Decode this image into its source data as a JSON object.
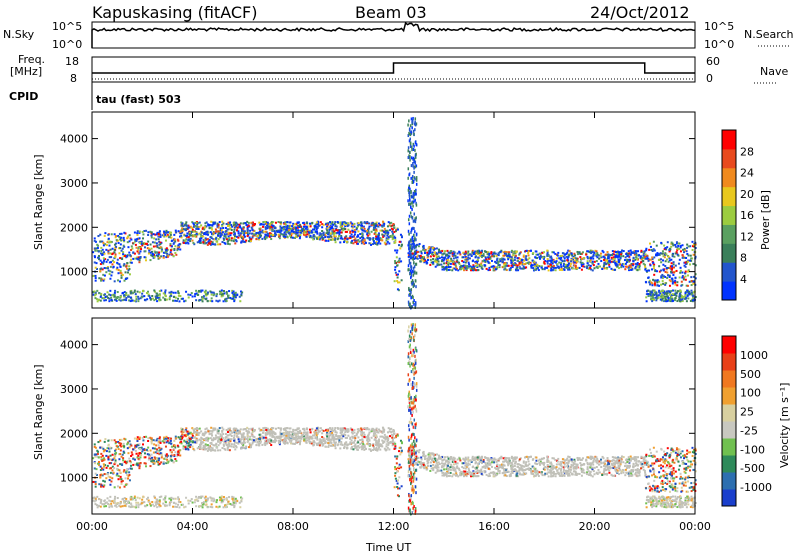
{
  "header": {
    "station": "Kapuskasing (fitACF)",
    "beam": "Beam 03",
    "date": "24/Oct/2012"
  },
  "panel_labels": {
    "nsky": "N.Sky",
    "nsearch": "N.Search",
    "freq_line1": "Freq.",
    "freq_line2": "[MHz]",
    "nave": "Nave",
    "cpid": "CPID",
    "cpid_value": "tau (fast) 503"
  },
  "noise_ticks_left": [
    "10^5",
    "10^0"
  ],
  "noise_ticks_right": [
    "10^5",
    "10^0"
  ],
  "freq_ticks_left": [
    "18",
    "8"
  ],
  "freq_ticks_right": [
    "60",
    "0"
  ],
  "colors": {
    "power_scale": [
      "#0033ff",
      "#2255cc",
      "#3a7f5a",
      "#5aa060",
      "#9ccc40",
      "#e8c81e",
      "#f08a1e",
      "#e84a1e",
      "#ff0000"
    ],
    "velocity_scale": [
      "#1a3fcc",
      "#2d6fb0",
      "#2e8a5a",
      "#70c050",
      "#c8c8c0",
      "#d8d0a0",
      "#f0a030",
      "#f07820",
      "#e84018",
      "#ff0000"
    ],
    "ground_scatter": "#c0c0b8"
  },
  "chart_data": [
    {
      "type": "heatmap",
      "name": "power",
      "xlabel": "",
      "ylabel": "Slant Range [km]",
      "x_ticks": [
        "00:00",
        "04:00",
        "08:00",
        "12:00",
        "16:00",
        "20:00",
        "00:00"
      ],
      "y_ticks": [
        "1000",
        "2000",
        "3000",
        "4000"
      ],
      "xlim_hours": [
        0,
        24
      ],
      "ylim_km": [
        180,
        4600
      ],
      "colorbar": {
        "label": "Power [dB]",
        "ticks": [
          "4",
          "8",
          "12",
          "16",
          "20",
          "24",
          "28"
        ]
      },
      "description": "Echo power versus time and slant range"
    },
    {
      "type": "heatmap",
      "name": "velocity",
      "xlabel": "Time UT",
      "ylabel": "Slant Range [km]",
      "x_ticks": [
        "00:00",
        "04:00",
        "08:00",
        "12:00",
        "16:00",
        "20:00",
        "00:00"
      ],
      "y_ticks": [
        "1000",
        "2000",
        "3000",
        "4000"
      ],
      "xlim_hours": [
        0,
        24
      ],
      "ylim_km": [
        180,
        4600
      ],
      "colorbar": {
        "label": "Velocity [m s⁻¹]",
        "ticks": [
          "1000",
          "500",
          "100",
          "25",
          "-25",
          "-100",
          "-500",
          "-1000"
        ]
      },
      "description": "Doppler velocity versus time and slant range"
    }
  ]
}
